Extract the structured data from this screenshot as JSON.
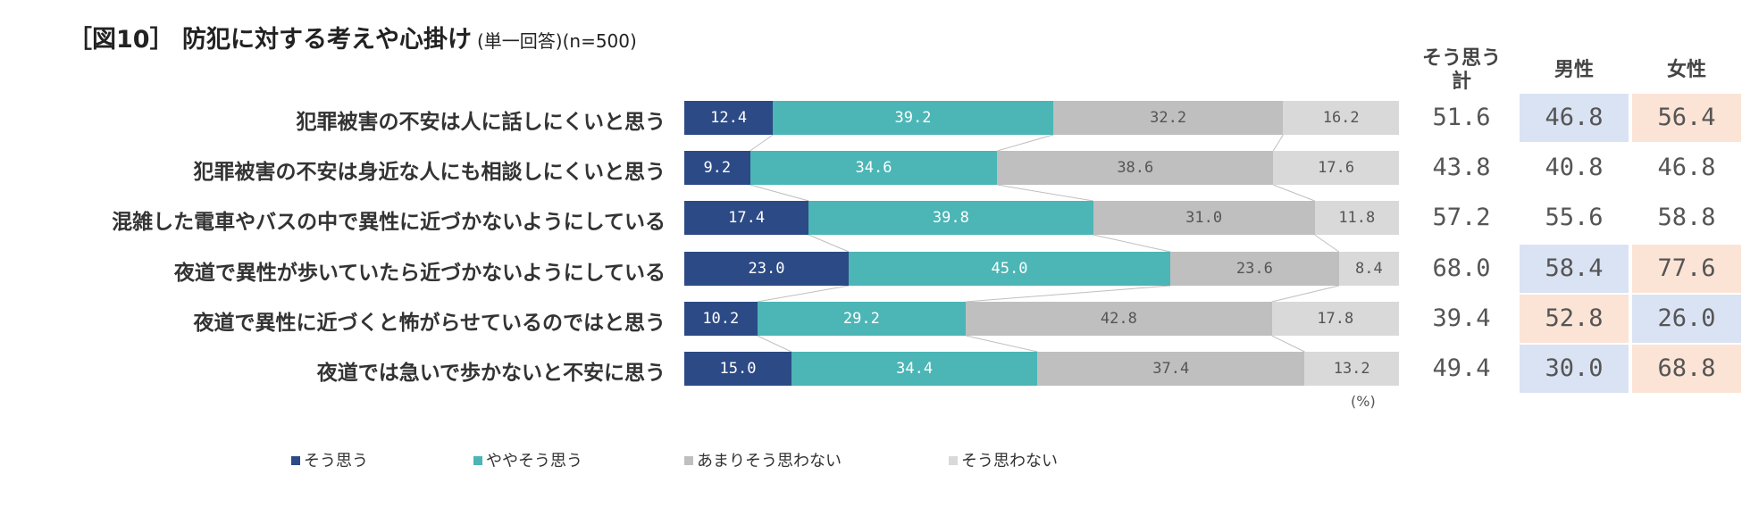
{
  "title": {
    "main": "［図10］ 防犯に対する考えや心掛け",
    "sub": "(単一回答)(n=500)"
  },
  "columns": {
    "total_header_line1": "そう思う",
    "total_header_line2": "計",
    "male_header": "男性",
    "female_header": "女性"
  },
  "unit_label": "(%)",
  "colors": {
    "sou_omou": "#2c4a85",
    "yaya_sou_omou": "#4cb5b5",
    "amari": "#bfbfbf",
    "sou_omowanai": "#d9d9d9",
    "highlight_blue": "#dae3f3",
    "highlight_orange": "#fbe4d5"
  },
  "chart_data": {
    "type": "bar",
    "stacked": true,
    "orientation": "horizontal",
    "categories": [
      "犯罪被害の不安は人に話しにくいと思う",
      "犯罪被害の不安は身近な人にも相談しにくいと思う",
      "混雑した電車やバスの中で異性に近づかないようにしている",
      "夜道で異性が歩いていたら近づかないようにしている",
      "夜道で異性に近づくと怖がらせているのではと思う",
      "夜道では急いで歩かないと不安に思う"
    ],
    "series": [
      {
        "name": "そう思う",
        "values": [
          12.4,
          9.2,
          17.4,
          23.0,
          10.2,
          15.0
        ]
      },
      {
        "name": "ややそう思う",
        "values": [
          39.2,
          34.6,
          39.8,
          45.0,
          29.2,
          34.4
        ]
      },
      {
        "name": "あまりそう思わない",
        "values": [
          32.2,
          38.6,
          31.0,
          23.6,
          42.8,
          37.4
        ]
      },
      {
        "name": "そう思わない",
        "values": [
          16.2,
          17.6,
          11.8,
          8.4,
          17.8,
          13.2
        ]
      }
    ],
    "value_labels": [
      [
        "12.4",
        "39.2",
        "32.2",
        "16.2"
      ],
      [
        "9.2",
        "34.6",
        "38.6",
        "17.6"
      ],
      [
        "17.4",
        "39.8",
        "31.0",
        "11.8"
      ],
      [
        "23.0",
        "45.0",
        "23.6",
        "8.4"
      ],
      [
        "10.2",
        "29.2",
        "42.8",
        "17.8"
      ],
      [
        "15.0",
        "34.4",
        "37.4",
        "13.2"
      ]
    ],
    "xlim": [
      0,
      100
    ],
    "legend": [
      "そう思う",
      "ややそう思う",
      "あまりそう思わない",
      "そう思わない"
    ],
    "legend_position": "bottom",
    "table": {
      "total": [
        "51.6",
        "43.8",
        "57.2",
        "68.0",
        "39.4",
        "49.4"
      ],
      "male": [
        "46.8",
        "40.8",
        "55.6",
        "58.4",
        "52.8",
        "30.0"
      ],
      "female": [
        "56.4",
        "46.8",
        "58.8",
        "77.6",
        "26.0",
        "68.8"
      ],
      "male_highlight": [
        "blue",
        "none",
        "none",
        "blue",
        "orange",
        "blue"
      ],
      "female_highlight": [
        "orange",
        "none",
        "none",
        "orange",
        "blue",
        "orange"
      ]
    }
  }
}
